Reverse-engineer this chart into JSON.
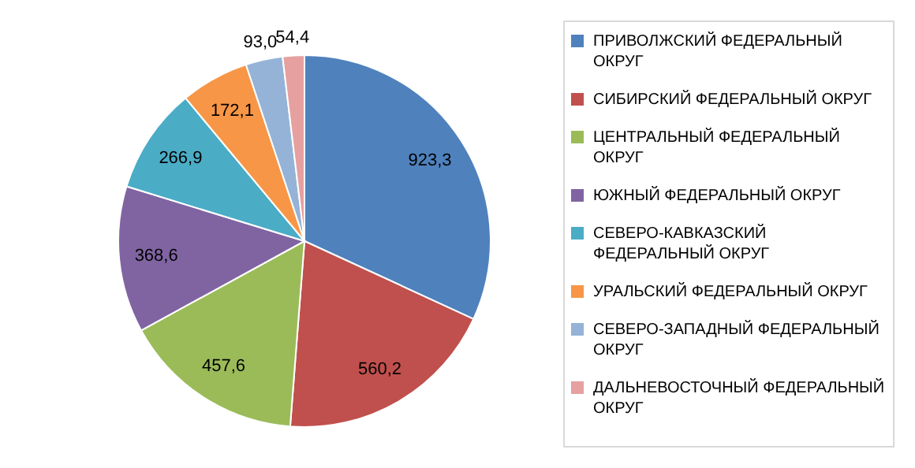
{
  "chart_data": {
    "type": "pie",
    "categories": [
      "ПРИВОЛЖСКИЙ ФЕДЕРАЛЬНЫЙ ОКРУГ",
      "СИБИРСКИЙ ФЕДЕРАЛЬНЫЙ ОКРУГ",
      "ЦЕНТРАЛЬНЫЙ ФЕДЕРАЛЬНЫЙ ОКРУГ",
      "ЮЖНЫЙ ФЕДЕРАЛЬНЫЙ ОКРУГ",
      "СЕВЕРО-КАВКАЗСКИЙ ФЕДЕРАЛЬНЫЙ ОКРУГ",
      "УРАЛЬСКИЙ ФЕДЕРАЛЬНЫЙ ОКРУГ",
      "СЕВЕРО-ЗАПАДНЫЙ ФЕДЕРАЛЬНЫЙ ОКРУГ",
      "ДАЛЬНЕВОСТОЧНЫЙ ФЕДЕРАЛЬНЫЙ ОКРУГ"
    ],
    "values": [
      923.3,
      560.2,
      457.6,
      368.6,
      266.9,
      172.1,
      93.0,
      54.4
    ],
    "value_labels": [
      "923,3",
      "560,2",
      "457,6",
      "368,6",
      "266,9",
      "172,1",
      "93,0",
      "54,4"
    ],
    "colors": [
      "#4f81bd",
      "#c0504d",
      "#9bbb59",
      "#8064a2",
      "#4bacc6",
      "#f79646",
      "#95b3d7",
      "#e6a0a0"
    ],
    "legend": "right"
  }
}
